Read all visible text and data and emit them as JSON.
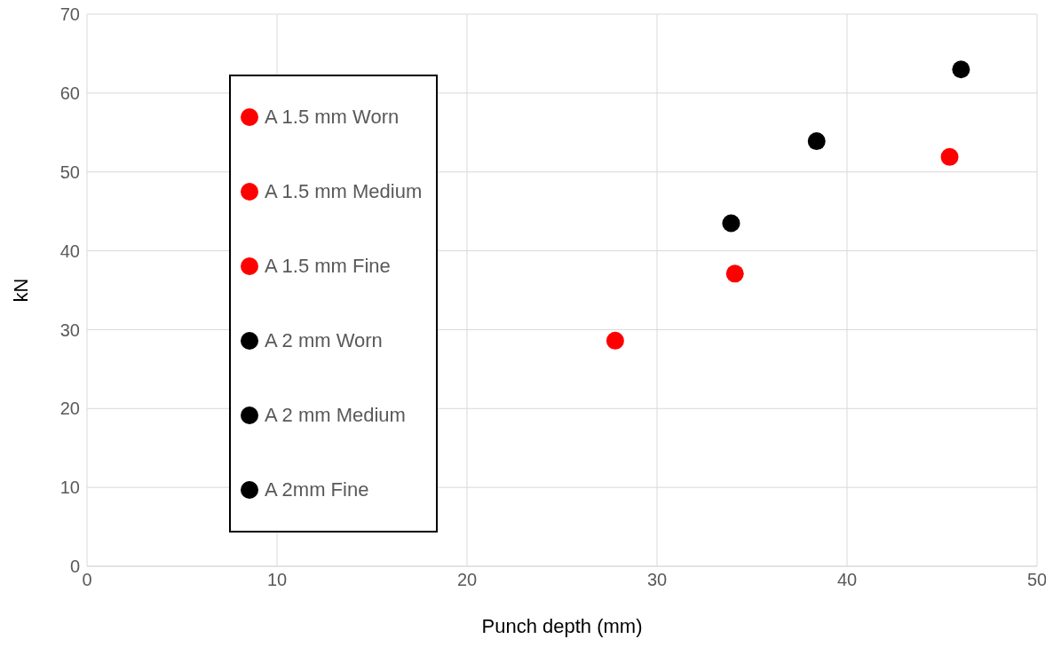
{
  "chart_data": {
    "type": "scatter",
    "xlabel": "Punch depth (mm)",
    "ylabel": "kN",
    "xlim": [
      0,
      50
    ],
    "xticks": [
      0,
      10,
      20,
      30,
      40,
      50
    ],
    "ylim": [
      0,
      70
    ],
    "yticks": [
      0,
      10,
      20,
      30,
      40,
      50,
      60,
      70
    ],
    "grid": true,
    "legend": "left",
    "marker": "circle",
    "series": [
      {
        "name": "A 1.5 mm Worn",
        "color": "#ff0000",
        "x": [
          27.8
        ],
        "values": [
          28.6
        ]
      },
      {
        "name": "A 1.5 mm Medium",
        "color": "#ff0000",
        "x": [
          34.1
        ],
        "values": [
          37.1
        ]
      },
      {
        "name": "A 1.5 mm Fine",
        "color": "#ff0000",
        "x": [
          45.4
        ],
        "values": [
          51.9
        ]
      },
      {
        "name": "A 2 mm Worn",
        "color": "#000000",
        "x": [
          33.9
        ],
        "values": [
          43.5
        ]
      },
      {
        "name": "A 2 mm Medium",
        "color": "#000000",
        "x": [
          38.4
        ],
        "values": [
          53.9
        ]
      },
      {
        "name": "A 2mm Fine",
        "color": "#000000",
        "x": [
          46.0
        ],
        "values": [
          63.0
        ]
      }
    ]
  }
}
